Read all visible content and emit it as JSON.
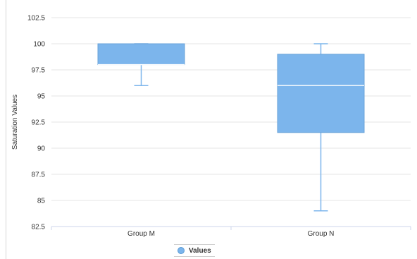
{
  "chart_data": {
    "type": "boxplot",
    "title": "",
    "xlabel": "",
    "ylabel": "Saturation Values",
    "ylim": [
      82.5,
      102.5
    ],
    "yticks": [
      "82.5",
      "85",
      "87.5",
      "90",
      "92.5",
      "95",
      "97.5",
      "100",
      "102.5"
    ],
    "categories": [
      "Group M",
      "Group N"
    ],
    "series": [
      {
        "name": "Values",
        "color": "#7cb5ec",
        "boxes": [
          {
            "category": "Group M",
            "min": 96,
            "q1": 98,
            "median": 98,
            "q3": 100,
            "max": 100
          },
          {
            "category": "Group N",
            "min": 84,
            "q1": 91.5,
            "median": 96,
            "q3": 99,
            "max": 100
          }
        ]
      }
    ],
    "grid": true,
    "legend": "bottom-center"
  }
}
